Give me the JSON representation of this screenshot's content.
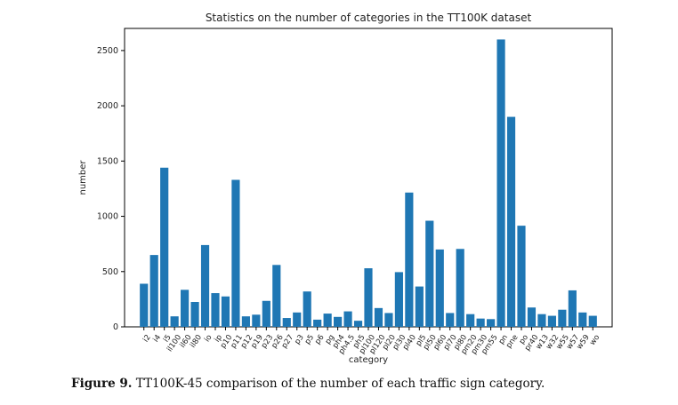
{
  "chart_data": {
    "type": "bar",
    "title": "Statistics on the number of categories in the TT100K dataset",
    "xlabel": "category",
    "ylabel": "number",
    "ylim": [
      0,
      2700
    ],
    "yticks": [
      0,
      500,
      1000,
      1500,
      2000,
      2500
    ],
    "bar_color": "#1f77b4",
    "grid": false,
    "categories": [
      "i2",
      "i4",
      "i5",
      "il100",
      "il60",
      "il80",
      "io",
      "ip",
      "p10",
      "p11",
      "p12",
      "p19",
      "p23",
      "p26",
      "p27",
      "p3",
      "p5",
      "p6",
      "pg",
      "ph4",
      "ph4.5",
      "ph5",
      "pl100",
      "pl120",
      "pl20",
      "pl30",
      "pl40",
      "pl5",
      "pl50",
      "pl60",
      "pl70",
      "pl80",
      "pm20",
      "pm30",
      "pm55",
      "pn",
      "pne",
      "po",
      "pr40",
      "w13",
      "w32",
      "w55",
      "w57",
      "w59",
      "wo"
    ],
    "values": [
      390,
      650,
      1440,
      95,
      335,
      225,
      740,
      305,
      275,
      1330,
      95,
      110,
      235,
      560,
      80,
      130,
      320,
      65,
      120,
      90,
      140,
      55,
      530,
      170,
      125,
      495,
      1215,
      365,
      960,
      700,
      125,
      705,
      115,
      75,
      70,
      2600,
      1900,
      915,
      175,
      115,
      100,
      155,
      330,
      130,
      100
    ]
  },
  "caption": {
    "label": "Figure 9.",
    "text": "TT100K-45 comparison of the number of each traffic sign category."
  }
}
